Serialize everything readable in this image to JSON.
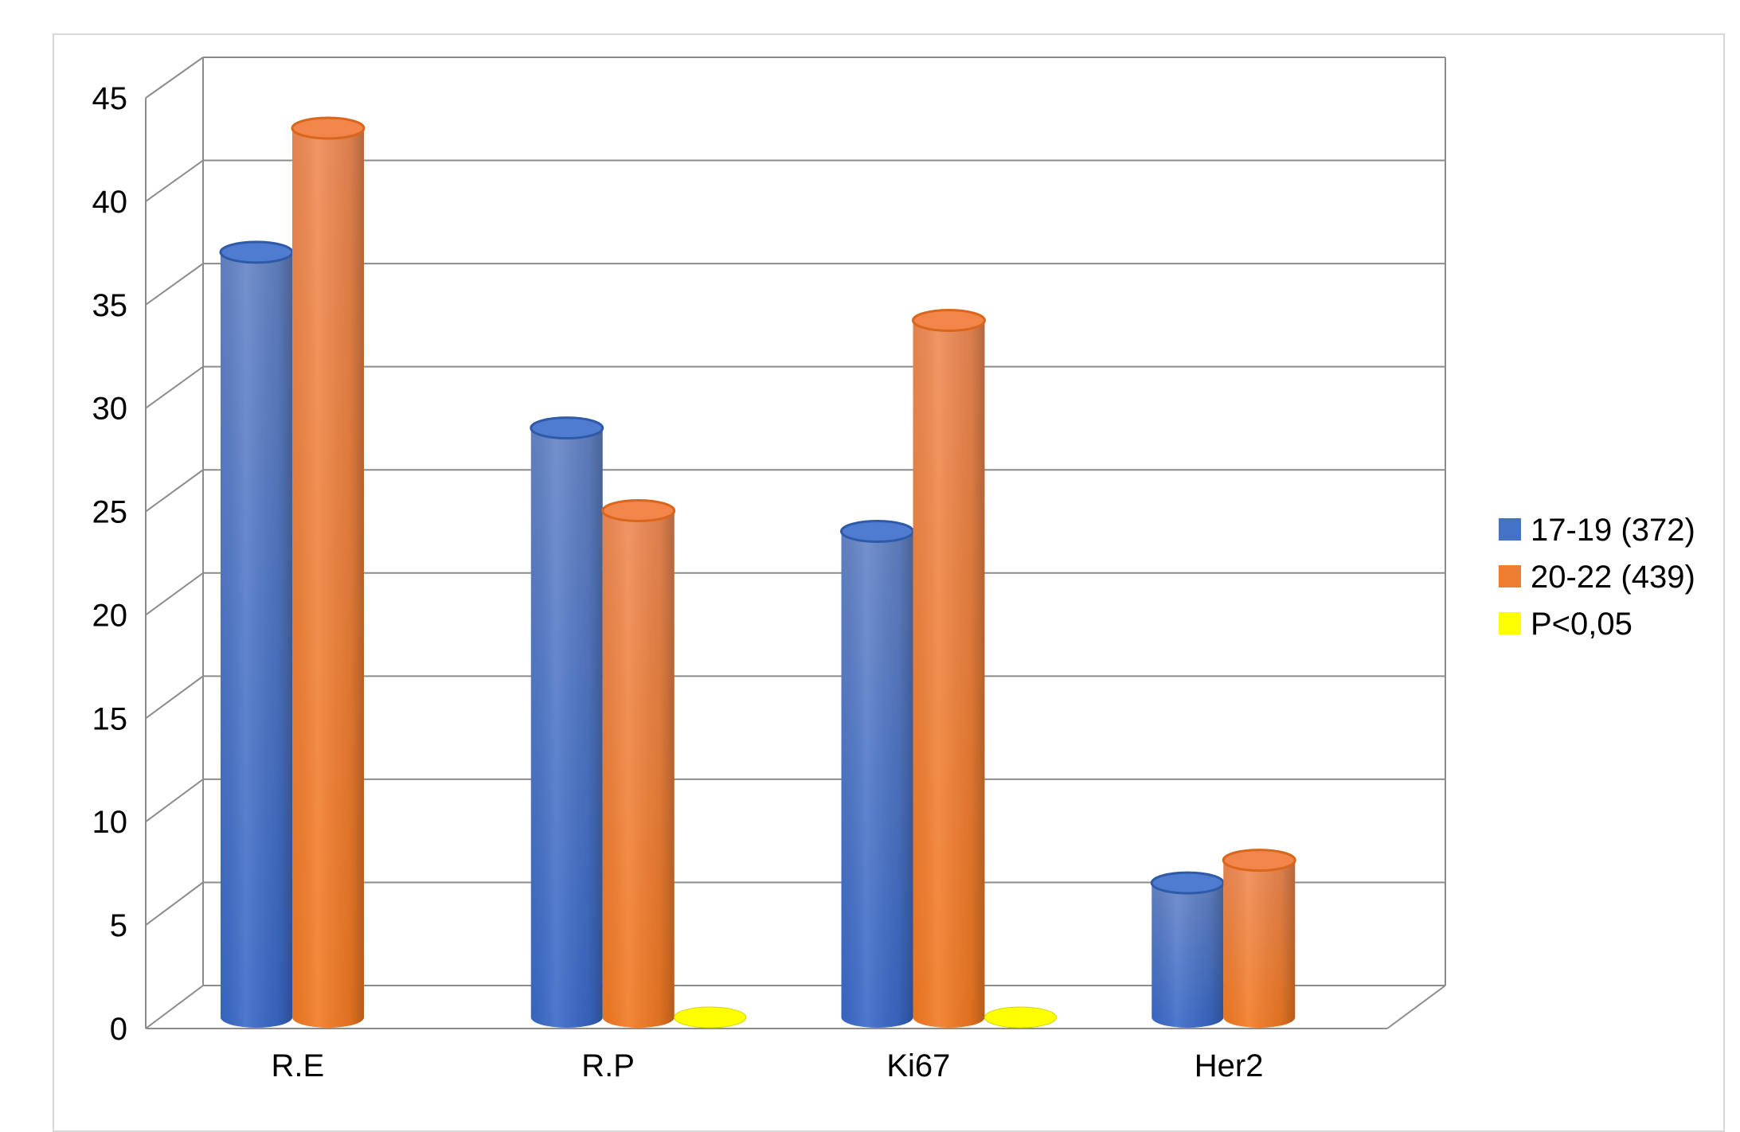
{
  "chart_data": {
    "type": "bar",
    "categories": [
      "R.E",
      "R.P",
      "Ki67",
      "Her2"
    ],
    "series": [
      {
        "name": "17-19 (372)",
        "color": "#4472c4",
        "values": [
          37,
          28.5,
          23.5,
          6.5
        ]
      },
      {
        "name": "20-22 (439)",
        "color": "#ed7d31",
        "values": [
          43,
          24.5,
          33.7,
          7.6
        ]
      },
      {
        "name": "P<0,05",
        "color": "#ffff00",
        "values": [
          null,
          0,
          0,
          null
        ]
      }
    ],
    "ylim": [
      0,
      45
    ],
    "yticks": [
      "0",
      "5",
      "10",
      "15",
      "20",
      "25",
      "30",
      "35",
      "40",
      "45"
    ],
    "grid": true,
    "legend_position": "right",
    "style": "3d-cylinder"
  }
}
